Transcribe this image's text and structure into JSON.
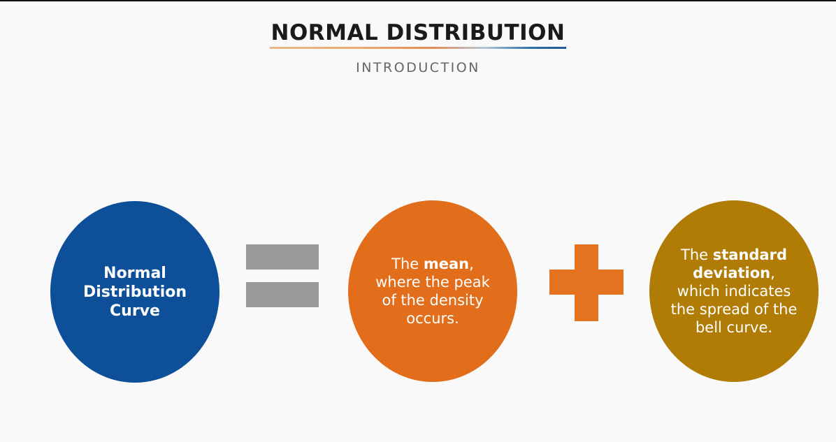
{
  "header": {
    "title": "NORMAL DISTRIBUTION",
    "subtitle": "INTRODUCTION"
  },
  "diagram": {
    "operator_1": "equals",
    "operator_2": "plus",
    "term_1": {
      "text": "Normal Distribution Curve",
      "color": "#0d4f99"
    },
    "term_2": {
      "pre": "The ",
      "bold": "mean",
      "post": ", where the peak of the density occurs.",
      "color": "#e26d1a"
    },
    "term_3": {
      "pre": "The ",
      "bold": "standard deviation",
      "post": ", which indicates the spread of the bell curve.",
      "color": "#b07c06"
    },
    "colors": {
      "equals": "#999999",
      "plus": "#e4731f"
    }
  }
}
